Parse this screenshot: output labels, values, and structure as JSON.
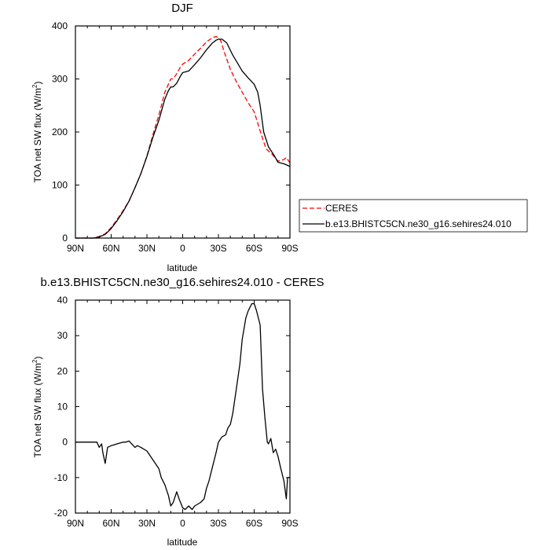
{
  "chart_data": [
    {
      "type": "line",
      "title": "DJF",
      "xlabel": "latitude",
      "ylabel": "TOA net SW flux (W/m",
      "ylabel_sup": "2",
      "ylabel_end": ")",
      "xlim": [
        90,
        -90
      ],
      "ylim": [
        0,
        400
      ],
      "x_ticks": [
        90,
        60,
        30,
        0,
        -30,
        -60,
        -90
      ],
      "x_tick_labels": [
        "90N",
        "60N",
        "30N",
        "0",
        "30S",
        "60S",
        "90S"
      ],
      "y_ticks": [
        0,
        100,
        200,
        300,
        400
      ],
      "y_tick_labels": [
        "0",
        "100",
        "200",
        "300",
        "400"
      ],
      "series": [
        {
          "name": "CERES",
          "color": "#ff0000",
          "dash": "dashed",
          "x": [
            90,
            80,
            75,
            70,
            65,
            60,
            55,
            50,
            45,
            40,
            35,
            30,
            25,
            20,
            15,
            12,
            10,
            8,
            5,
            2,
            0,
            -5,
            -10,
            -15,
            -20,
            -25,
            -28,
            -30,
            -32,
            -35,
            -40,
            -45,
            -50,
            -55,
            -60,
            -65,
            -70,
            -75,
            -80,
            -85,
            -87,
            -90
          ],
          "y": [
            0,
            0,
            0,
            3,
            8,
            20,
            35,
            52,
            70,
            95,
            122,
            155,
            195,
            232,
            275,
            290,
            300,
            300,
            310,
            322,
            328,
            335,
            347,
            358,
            370,
            378,
            380,
            378,
            372,
            350,
            318,
            295,
            275,
            255,
            238,
            202,
            168,
            158,
            145,
            148,
            152,
            142
          ]
        },
        {
          "name": "b.e13.BHISTC5CN.ne30_g16.sehires24.010",
          "color": "#000000",
          "dash": "solid",
          "x": [
            90,
            80,
            75,
            70,
            65,
            60,
            55,
            50,
            45,
            40,
            35,
            30,
            25,
            20,
            15,
            12,
            10,
            8,
            5,
            2,
            0,
            -5,
            -10,
            -15,
            -20,
            -25,
            -28,
            -30,
            -33,
            -37,
            -42,
            -50,
            -55,
            -60,
            -63,
            -65,
            -68,
            -72,
            -77,
            -80,
            -85,
            -88,
            -90
          ],
          "y": [
            0,
            0,
            0,
            2,
            7,
            18,
            33,
            50,
            70,
            95,
            122,
            154,
            190,
            222,
            262,
            278,
            285,
            285,
            292,
            305,
            312,
            315,
            327,
            340,
            355,
            368,
            373,
            375,
            375,
            368,
            345,
            315,
            302,
            290,
            275,
            250,
            200,
            172,
            155,
            143,
            140,
            137,
            135
          ]
        }
      ],
      "legend": {
        "placement": "right",
        "entries": [
          "CERES",
          "b.e13.BHISTC5CN.ne30_g16.sehires24.010"
        ]
      }
    },
    {
      "type": "line",
      "title": "b.e13.BHISTC5CN.ne30_g16.sehires24.010 - CERES",
      "xlabel": "latitude",
      "ylabel": "TOA net SW flux (W/m",
      "ylabel_sup": "2",
      "ylabel_end": ")",
      "xlim": [
        90,
        -90
      ],
      "ylim": [
        -20,
        40
      ],
      "x_ticks": [
        90,
        60,
        30,
        0,
        -30,
        -60,
        -90
      ],
      "x_tick_labels": [
        "90N",
        "60N",
        "30N",
        "0",
        "30S",
        "60S",
        "90S"
      ],
      "y_ticks": [
        -20,
        -10,
        0,
        10,
        20,
        30,
        40
      ],
      "y_tick_labels": [
        "-20",
        "-10",
        "0",
        "10",
        "20",
        "30",
        "40"
      ],
      "series": [
        {
          "color": "#000000",
          "dash": "solid",
          "x": [
            90,
            80,
            75,
            72,
            70,
            68,
            67,
            65,
            63,
            60,
            55,
            50,
            48,
            45,
            40,
            38,
            35,
            30,
            25,
            20,
            18,
            15,
            12,
            10,
            8,
            5,
            3,
            0,
            -2,
            -5,
            -8,
            -10,
            -15,
            -18,
            -20,
            -22,
            -25,
            -28,
            -30,
            -33,
            -36,
            -38,
            -40,
            -42,
            -45,
            -48,
            -50,
            -53,
            -55,
            -58,
            -60,
            -62,
            -65,
            -67,
            -69,
            -71,
            -72,
            -74,
            -76,
            -78,
            -80,
            -82,
            -85,
            -87,
            -88,
            -90
          ],
          "y": [
            0,
            0,
            0,
            0,
            -1.5,
            -0.5,
            -3,
            -6,
            -1.5,
            -1,
            -0.5,
            0,
            0,
            0.3,
            -1.5,
            -1,
            -1.5,
            -2.5,
            -5,
            -7.5,
            -10,
            -12,
            -15,
            -18,
            -17,
            -14,
            -16,
            -18.5,
            -19,
            -18,
            -19,
            -18,
            -17,
            -16,
            -13,
            -11,
            -7,
            -3,
            0,
            1.5,
            2,
            4,
            5,
            8,
            15,
            22,
            29,
            35,
            37,
            39,
            39,
            37,
            33,
            15,
            7,
            0,
            -0.5,
            1,
            -3,
            -2,
            -4,
            -7,
            -11,
            -16,
            -10,
            -10
          ]
        }
      ]
    }
  ]
}
